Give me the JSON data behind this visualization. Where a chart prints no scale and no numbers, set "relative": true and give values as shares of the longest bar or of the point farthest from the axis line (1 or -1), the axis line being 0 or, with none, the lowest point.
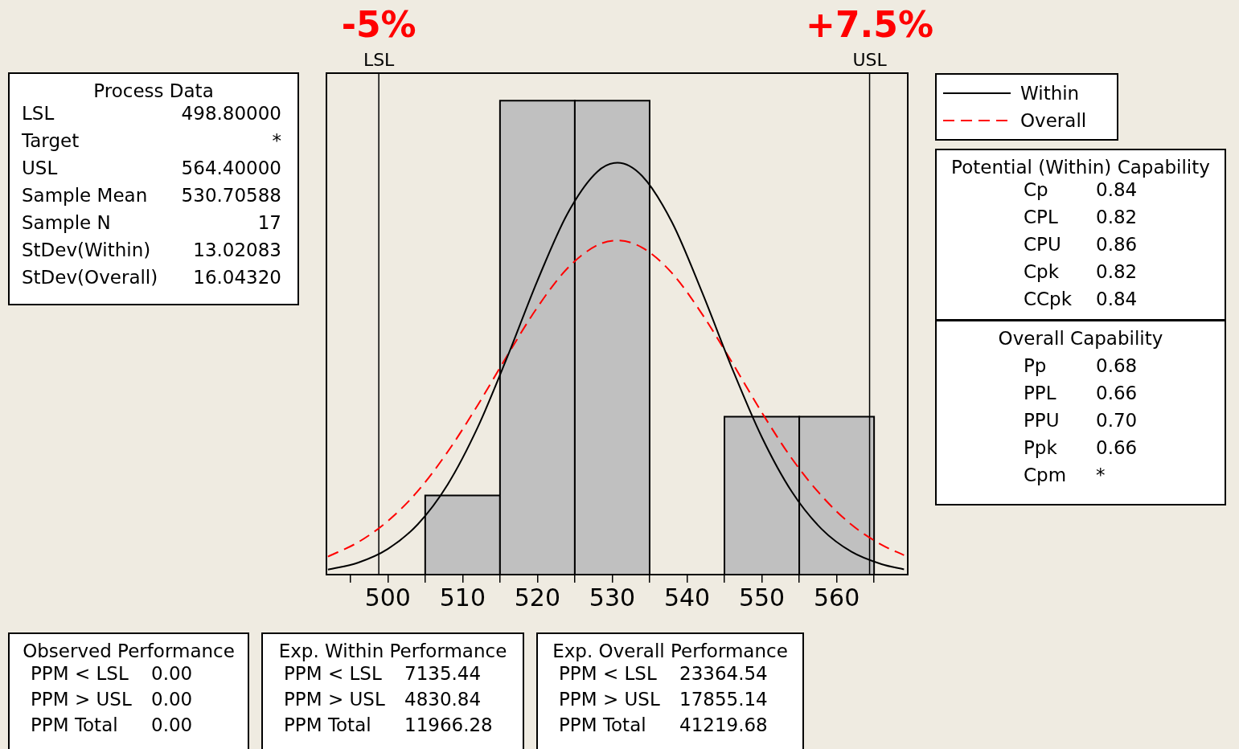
{
  "chart_data": [
    {
      "type": "histogram",
      "relative": true,
      "bins": [
        505,
        515,
        525,
        535,
        545,
        555,
        565
      ],
      "values": [
        0.167,
        1,
        1,
        0,
        0.333,
        0.333
      ],
      "color": "#c0c0c0",
      "series": [
        {
          "name": "Within",
          "type": "line",
          "color": "#000000",
          "line_style": "solid",
          "x": [
            492,
            496,
            500,
            504,
            508,
            512,
            516,
            520,
            524,
            528,
            530.7,
            534,
            538,
            542,
            546,
            550,
            554,
            558,
            562,
            566,
            569
          ],
          "values": [
            0.0105,
            0.025,
            0.054,
            0.106,
            0.19,
            0.31,
            0.46,
            0.62,
            0.761,
            0.85,
            0.869,
            0.841,
            0.743,
            0.596,
            0.436,
            0.29,
            0.175,
            0.096,
            0.048,
            0.022,
            0.011
          ]
        },
        {
          "name": "Overall",
          "type": "line",
          "color": "#ff0000",
          "line_style": "dashed",
          "x": [
            492,
            496,
            500,
            504,
            508,
            512,
            516,
            520,
            524,
            528,
            530.7,
            534,
            538,
            542,
            546,
            550,
            554,
            558,
            562,
            566,
            569
          ],
          "values": [
            0.038,
            0.068,
            0.113,
            0.176,
            0.259,
            0.357,
            0.463,
            0.564,
            0.646,
            0.695,
            0.705,
            0.69,
            0.636,
            0.55,
            0.448,
            0.342,
            0.245,
            0.166,
            0.105,
            0.063,
            0.041
          ]
        }
      ],
      "xlim": [
        491.8,
        569.5
      ],
      "xticks": [
        {
          "value": 495,
          "label": null
        },
        500,
        {
          "value": 505,
          "label": null
        },
        510,
        {
          "value": 515,
          "label": null
        },
        520,
        {
          "value": 525,
          "label": null
        },
        530,
        {
          "value": 535,
          "label": null
        },
        540,
        {
          "value": 545,
          "label": null
        },
        550,
        {
          "value": 555,
          "label": null
        },
        560,
        {
          "value": 565,
          "label": null
        }
      ],
      "ref_lines": [
        {
          "axis": "x",
          "value": 498.8,
          "label": "LSL",
          "color": "#000000"
        },
        {
          "axis": "x",
          "value": 564.4,
          "label": "USL",
          "color": "#000000"
        }
      ],
      "annotations": [
        "-5%",
        "+7.5%"
      ],
      "legend": "right",
      "grid": false,
      "marker": "none",
      "tick_labels": "x"
    },
    {
      "type": "other",
      "title": "Process Data",
      "annotations": [
        "LSL",
        "498.80000",
        "Target",
        "*",
        "USL",
        "564.40000",
        "Sample Mean",
        "530.70588",
        "Sample N",
        "17",
        "StDev(Within)",
        "13.02083",
        "StDev(Overall)",
        "16.04320"
      ]
    },
    {
      "type": "other",
      "title": "Potential (Within) Capability",
      "annotations": [
        "Cp",
        "0.84",
        "CPL",
        "0.82",
        "CPU",
        "0.86",
        "Cpk",
        "0.82",
        "CCpk",
        "0.84"
      ]
    },
    {
      "type": "other",
      "title": "Overall Capability",
      "annotations": [
        "Pp",
        "0.68",
        "PPL",
        "0.66",
        "PPU",
        "0.70",
        "Ppk",
        "0.66",
        "Cpm",
        "*"
      ]
    },
    {
      "type": "other",
      "title": "Observed Performance",
      "annotations": [
        "PPM < LSL",
        "0.00",
        "PPM > USL",
        "0.00",
        "PPM Total",
        "0.00"
      ]
    },
    {
      "type": "other",
      "title": "Exp. Within Performance",
      "annotations": [
        "PPM < LSL",
        "7135.44",
        "PPM > USL",
        "4830.84",
        "PPM Total",
        "11966.28"
      ]
    },
    {
      "type": "other",
      "title": "Exp. Overall Performance",
      "annotations": [
        "PPM < LSL",
        "23364.54",
        "PPM > USL",
        "17855.14",
        "PPM Total",
        "41219.68"
      ]
    }
  ]
}
